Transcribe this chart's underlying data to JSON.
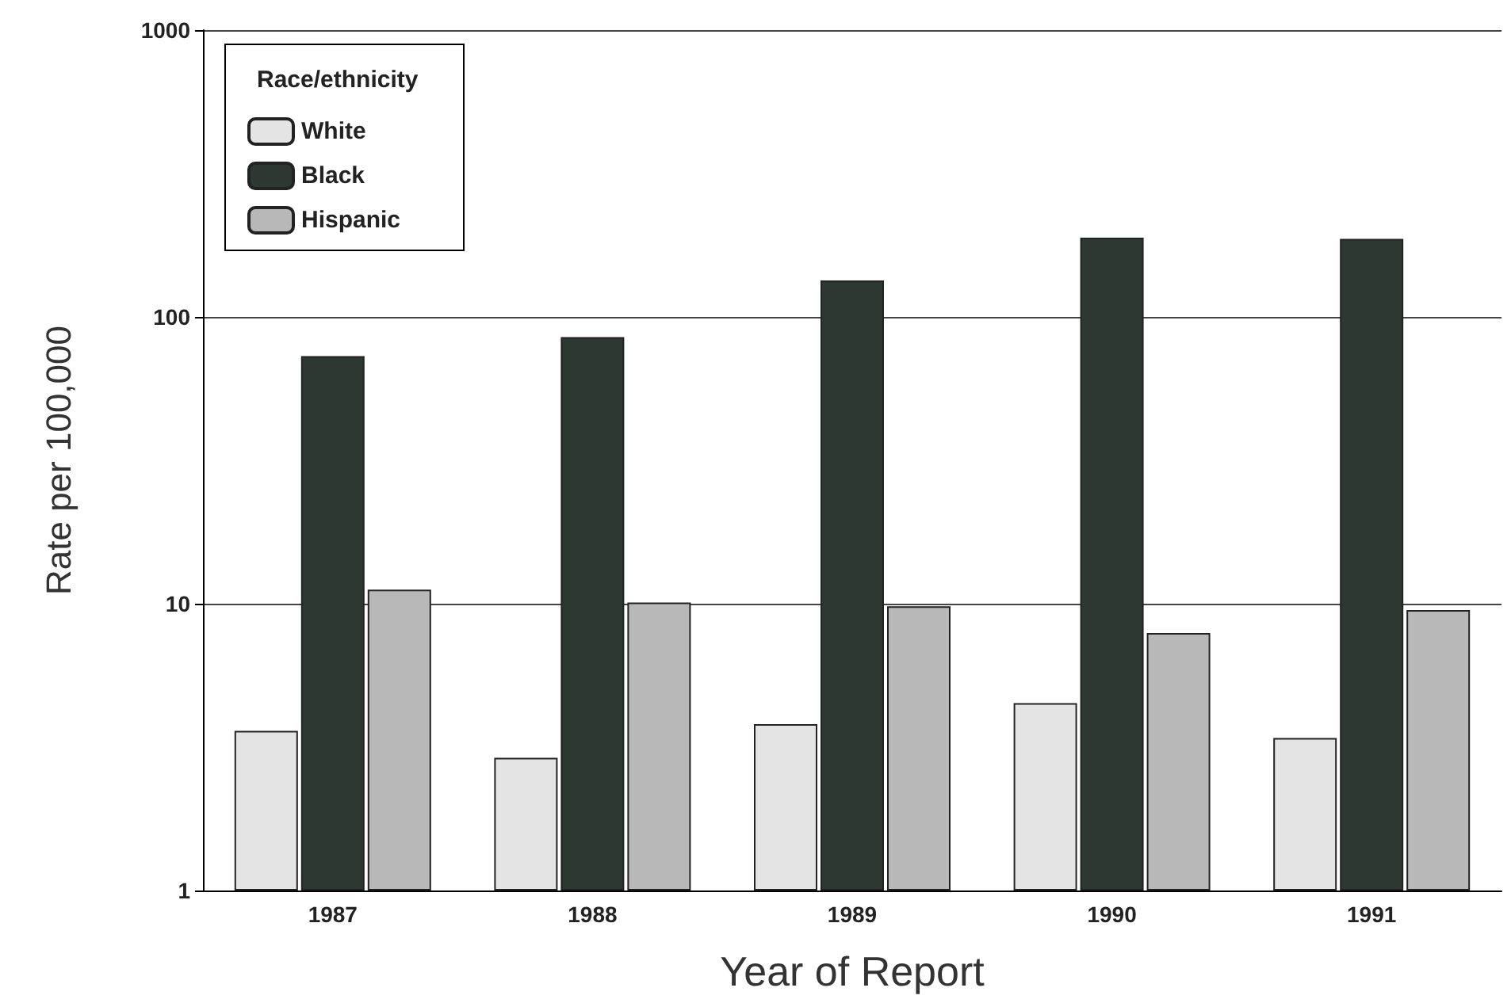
{
  "chart_data": {
    "type": "bar",
    "xlabel": "Year of Report",
    "ylabel": "Rate per 100,000",
    "legend_title": "Race/ethnicity",
    "categories": [
      "1987",
      "1988",
      "1989",
      "1990",
      "1991"
    ],
    "series": [
      {
        "name": "White",
        "color": "#e4e4e4",
        "values": [
          3.6,
          2.9,
          3.8,
          4.5,
          3.4
        ]
      },
      {
        "name": "Black",
        "color": "#2e3833",
        "values": [
          73,
          85,
          134,
          189,
          187
        ]
      },
      {
        "name": "Hispanic",
        "color": "#b8b8b8",
        "values": [
          11.2,
          10.1,
          9.8,
          7.9,
          9.5
        ]
      }
    ],
    "log": "y",
    "ylim": [
      1,
      1000
    ],
    "yticks": [
      1,
      10,
      100,
      1000
    ],
    "grid": "y",
    "legend": "top left"
  }
}
